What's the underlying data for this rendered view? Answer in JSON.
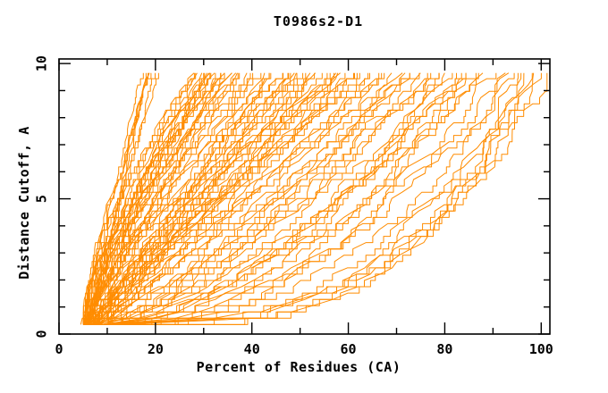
{
  "chart_data": {
    "type": "line",
    "title": "T0986s2-D1",
    "xlabel": "Percent of Residues (CA)",
    "ylabel": "Distance Cutoff, A",
    "xlim": [
      0,
      101.8
    ],
    "ylim": [
      0,
      10.17
    ],
    "x_major_ticks": [
      0,
      20,
      40,
      60,
      80,
      100
    ],
    "x_minor_ticks": [
      10,
      30,
      50,
      70,
      90
    ],
    "y_major_ticks": [
      0,
      5,
      10
    ],
    "y_minor_ticks": [
      1,
      2,
      3,
      4,
      6,
      7,
      8,
      9
    ],
    "grid": false,
    "legend": "none",
    "line_color": "#ff8c00",
    "axis_color": "#000000",
    "background_color": "#ffffff",
    "curve_note": "Each curve = one predicted model: percent of CA residues (x) under distance cutoff (y). Encoded as [start_percent_at_0.35A, percent_at_9.65A, shape_exponent, seed]; renderer interpolates x = p0+(p10-p0)*t^beta with seeded jitter.",
    "curve_y_start": 0.35,
    "curve_y_end": 9.65,
    "curve_y_step": 0.2331,
    "curves": [
      [
        8,
        101,
        0.3,
        11
      ],
      [
        10,
        100,
        0.34,
        12
      ],
      [
        12,
        99,
        0.3,
        13
      ],
      [
        9,
        97,
        0.38,
        14
      ],
      [
        11,
        96,
        0.33,
        15
      ],
      [
        7,
        95,
        0.42,
        16
      ],
      [
        10,
        98,
        0.36,
        17
      ],
      [
        12,
        96,
        0.31,
        18
      ],
      [
        7,
        94,
        0.45,
        21
      ],
      [
        9,
        92,
        0.5,
        22
      ],
      [
        8,
        90,
        0.42,
        23
      ],
      [
        10,
        88,
        0.55,
        24
      ],
      [
        6,
        87,
        0.5,
        25
      ],
      [
        9,
        86,
        0.6,
        26
      ],
      [
        11,
        85,
        0.48,
        27
      ],
      [
        8,
        84,
        0.65,
        28
      ],
      [
        7,
        82,
        0.55,
        29
      ],
      [
        10,
        81,
        0.6,
        30
      ],
      [
        9,
        80,
        0.5,
        31
      ],
      [
        6,
        83,
        0.58,
        32
      ],
      [
        6,
        79,
        0.6,
        41
      ],
      [
        8,
        78,
        0.7,
        42
      ],
      [
        7,
        77,
        0.65,
        43
      ],
      [
        9,
        76,
        0.75,
        44
      ],
      [
        5,
        75,
        0.7,
        45
      ],
      [
        8,
        74,
        0.8,
        46
      ],
      [
        6,
        73,
        0.72,
        47
      ],
      [
        10,
        72,
        0.85,
        48
      ],
      [
        7,
        71,
        0.78,
        49
      ],
      [
        9,
        70,
        0.9,
        50
      ],
      [
        5,
        69,
        0.8,
        51
      ],
      [
        8,
        68,
        0.95,
        52
      ],
      [
        6,
        67,
        0.85,
        53
      ],
      [
        7,
        66,
        1.0,
        54
      ],
      [
        9,
        65,
        0.9,
        55
      ],
      [
        5,
        64,
        1.05,
        56
      ],
      [
        8,
        63,
        0.95,
        57
      ],
      [
        6,
        62,
        1.1,
        58
      ],
      [
        7,
        61,
        1.0,
        59
      ],
      [
        8,
        60,
        0.9,
        60
      ],
      [
        5,
        59,
        0.95,
        61
      ],
      [
        7,
        58,
        1.1,
        62
      ],
      [
        6,
        57,
        1.0,
        63
      ],
      [
        8,
        56,
        1.2,
        64
      ],
      [
        5,
        55,
        1.05,
        65
      ],
      [
        7,
        54,
        0.9,
        66
      ],
      [
        6,
        53,
        1.15,
        67
      ],
      [
        8,
        52,
        1.0,
        68
      ],
      [
        5,
        51,
        1.25,
        69
      ],
      [
        7,
        50,
        1.1,
        70
      ],
      [
        6,
        49,
        0.95,
        71
      ],
      [
        8,
        48,
        1.2,
        72
      ],
      [
        5,
        47,
        1.05,
        73
      ],
      [
        7,
        46,
        1.3,
        74
      ],
      [
        6,
        45,
        1.1,
        75
      ],
      [
        8,
        44,
        0.95,
        76
      ],
      [
        5,
        43,
        1.2,
        77
      ],
      [
        7,
        42,
        1.05,
        78
      ],
      [
        6,
        41,
        1.3,
        79
      ],
      [
        5,
        40,
        1.1,
        80
      ],
      [
        7,
        47,
        0.85,
        81
      ],
      [
        6,
        51,
        0.9,
        82
      ],
      [
        5,
        55,
        0.8,
        83
      ],
      [
        6,
        45,
        1.0,
        84
      ],
      [
        7,
        49,
        1.15,
        85
      ],
      [
        5,
        53,
        0.88,
        86
      ],
      [
        6,
        42,
        1.22,
        87
      ],
      [
        5,
        57,
        0.92,
        88
      ],
      [
        5,
        39,
        1.2,
        91
      ],
      [
        6,
        38,
        1.35,
        92
      ],
      [
        5,
        37,
        1.1,
        93
      ],
      [
        7,
        36,
        1.45,
        94
      ],
      [
        5,
        35,
        1.25,
        95
      ],
      [
        6,
        34,
        1.15,
        96
      ],
      [
        5,
        33,
        1.4,
        97
      ],
      [
        6,
        32,
        1.2,
        98
      ],
      [
        5,
        31,
        1.5,
        99
      ],
      [
        6,
        30,
        1.3,
        100
      ],
      [
        5,
        29,
        1.45,
        101
      ],
      [
        6,
        28,
        1.25,
        102
      ],
      [
        5,
        27.5,
        1.55,
        103
      ],
      [
        6,
        31.5,
        1.35,
        104
      ],
      [
        5,
        30.5,
        1.5,
        105
      ],
      [
        4.5,
        29.5,
        1.3,
        106
      ],
      [
        5.5,
        36,
        1.1,
        107
      ],
      [
        5,
        34,
        1.55,
        108
      ],
      [
        6,
        31,
        1.05,
        109
      ],
      [
        5,
        28,
        1.6,
        110
      ],
      [
        5.5,
        32,
        1.2,
        111
      ],
      [
        5,
        38,
        1.3,
        112
      ],
      [
        6,
        35,
        1.42,
        113
      ],
      [
        5,
        30,
        1.18,
        114
      ],
      [
        5.5,
        33,
        1.5,
        115
      ],
      [
        5,
        17.5,
        1.1,
        121
      ],
      [
        5.5,
        18,
        0.95,
        122
      ],
      [
        5,
        19,
        1.25,
        123
      ],
      [
        6,
        20,
        1.05,
        124
      ],
      [
        5,
        20.5,
        1.15,
        125
      ],
      [
        5.5,
        18.3,
        0.9,
        126
      ],
      [
        5,
        19.5,
        1.3,
        127
      ],
      [
        6,
        18.8,
        1.0,
        128
      ]
    ]
  }
}
